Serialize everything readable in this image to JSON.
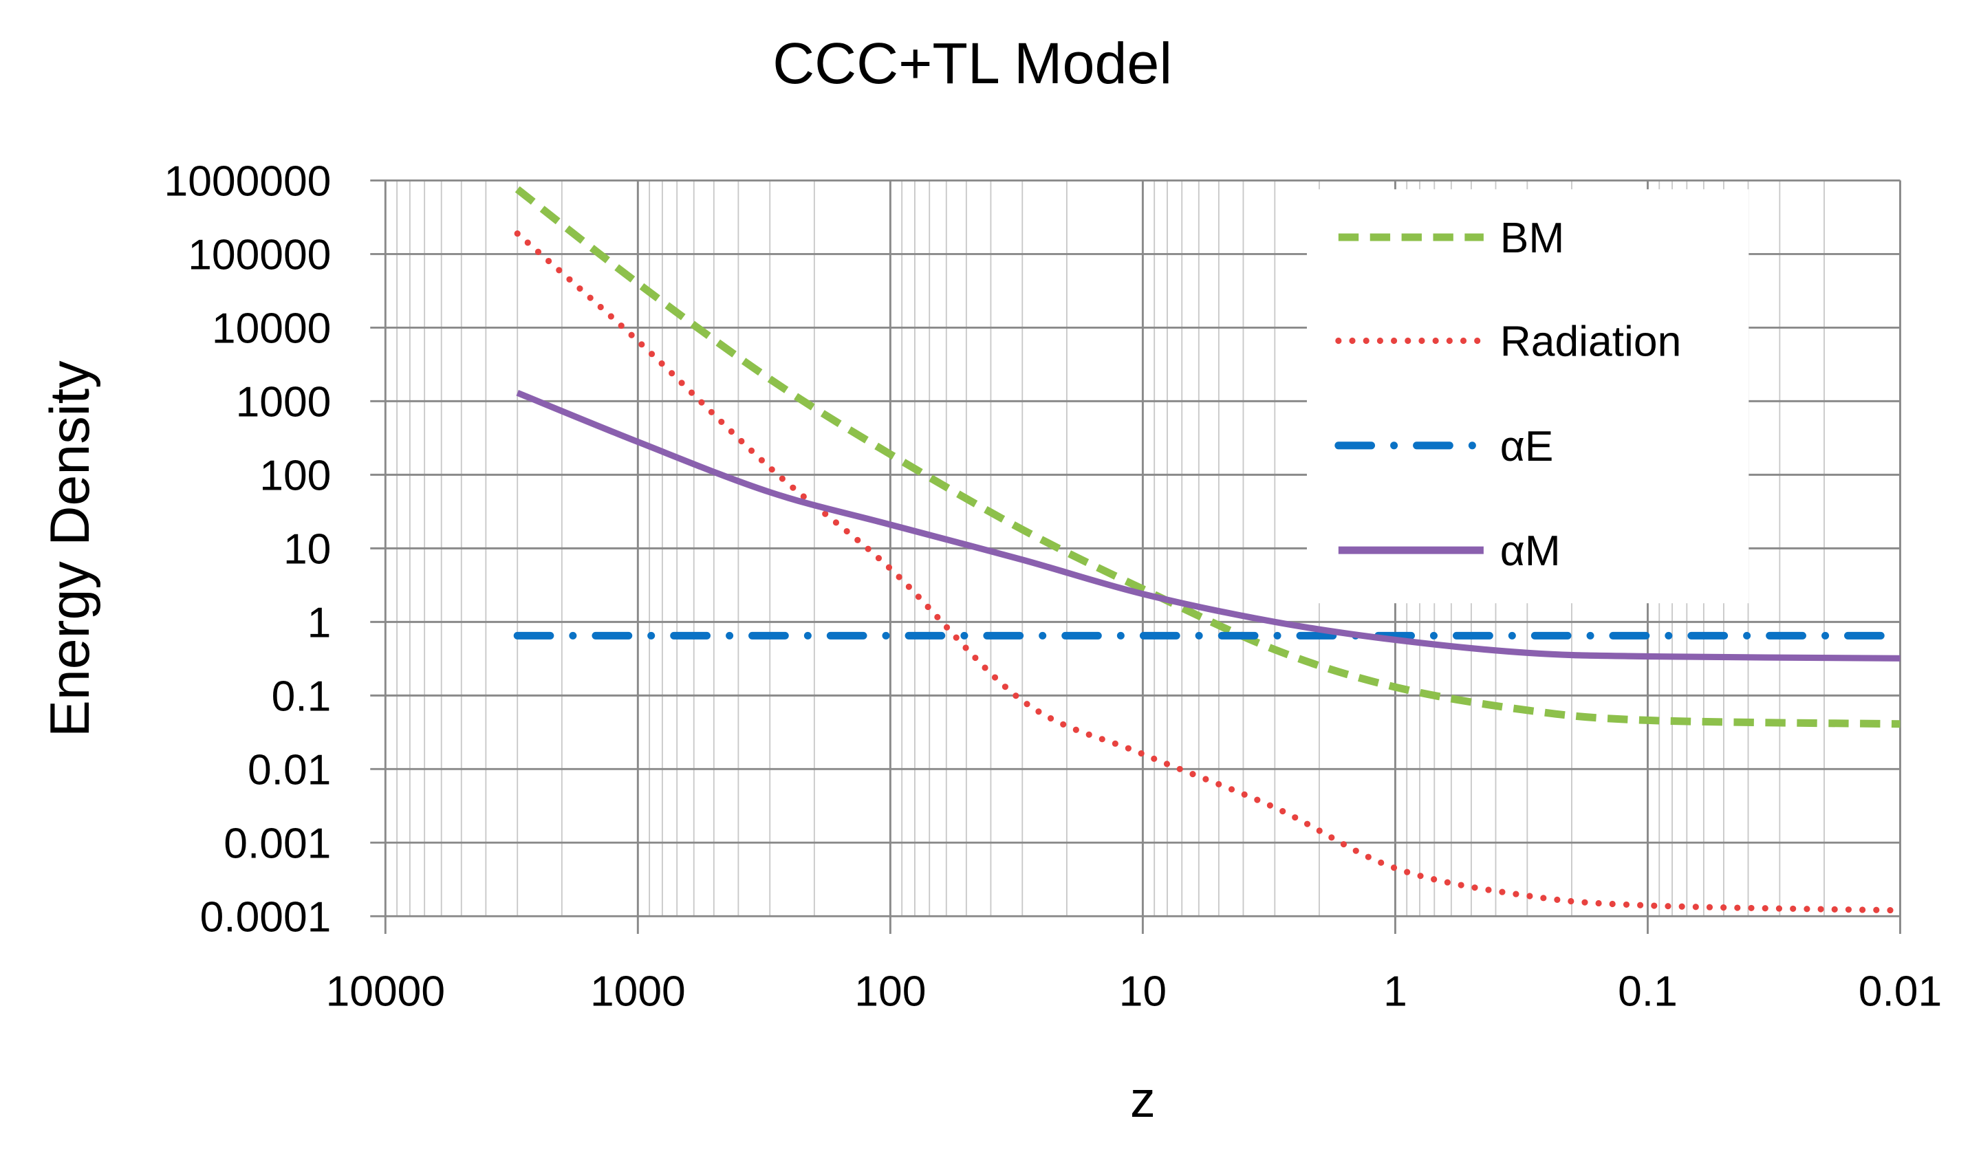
{
  "chart_data": {
    "type": "line",
    "title": "CCC+TL Model",
    "xlabel": "z",
    "ylabel": "Energy Density",
    "x_scale": "log",
    "y_scale": "log",
    "x_reversed": true,
    "xlim": [
      10000,
      0.01
    ],
    "ylim": [
      0.0001,
      1000000
    ],
    "x_ticks": [
      "10000",
      "1000",
      "100",
      "10",
      "1",
      "0.1",
      "0.01"
    ],
    "y_ticks": [
      "1000000",
      "100000",
      "10000",
      "1000",
      "100",
      "10",
      "1",
      "0.1",
      "0.01",
      "0.001",
      "0.0001"
    ],
    "grid": true,
    "legend_position": "top-right",
    "x": [
      3000,
      1000,
      300,
      100,
      30,
      10,
      3,
      1,
      0.3,
      0.1,
      0.01
    ],
    "series": [
      {
        "name": "BM",
        "color": "#8DC04B",
        "style": "dashed",
        "values": [
          760000,
          40000,
          2000,
          190,
          18,
          2.8,
          0.42,
          0.13,
          0.063,
          0.046,
          0.041
        ]
      },
      {
        "name": "Radiation",
        "color": "#E8423F",
        "style": "dotted",
        "values": [
          190000,
          6600,
          125,
          5.3,
          0.085,
          0.016,
          0.003,
          0.00045,
          0.00019,
          0.00014,
          0.00012
        ]
      },
      {
        "name": "αE",
        "color": "#0A72C5",
        "style": "dash-dot",
        "values": [
          0.65,
          0.65,
          0.65,
          0.65,
          0.65,
          0.65,
          0.65,
          0.65,
          0.65,
          0.65,
          0.65
        ]
      },
      {
        "name": "αM",
        "color": "#8A60AE",
        "style": "solid",
        "values": [
          1300,
          280,
          58,
          21,
          7,
          2.4,
          1.0,
          0.57,
          0.38,
          0.34,
          0.32
        ]
      }
    ]
  }
}
